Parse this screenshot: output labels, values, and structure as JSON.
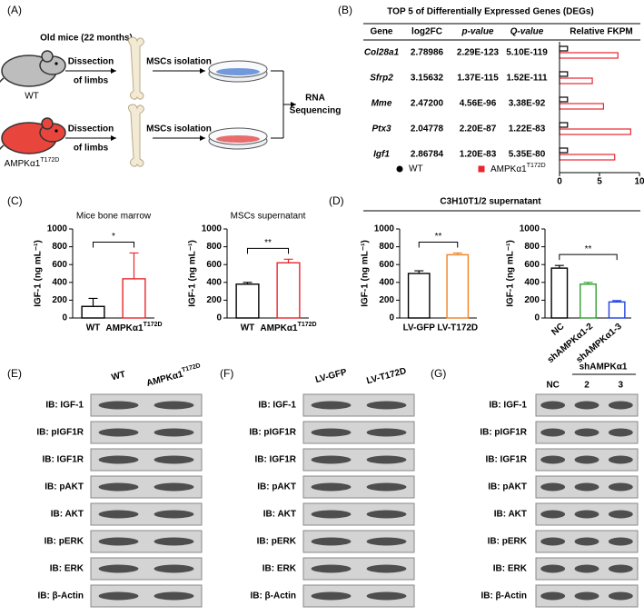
{
  "panel_a": {
    "label": "(A)",
    "title": "Old mice (22 months)",
    "groups": [
      {
        "name": "WT",
        "step1": [
          "Dissection",
          "of limbs"
        ],
        "step2": "MSCs isolation"
      },
      {
        "name": {
          "text": "AMPKα1",
          "sup": "T172D"
        },
        "step1": [
          "Dissection",
          "of limbs"
        ],
        "step2": "MSCs isolation"
      }
    ],
    "result": [
      "RNA",
      "Sequencing"
    ]
  },
  "panel_b": {
    "label": "(B)",
    "title": "TOP 5 of Differentially Expressed Genes (DEGs)",
    "header": [
      "Gene",
      "log2FC",
      "p-value",
      "Q-value",
      "Relative FKPM"
    ],
    "rows": [
      [
        "Col28a1",
        "2.78986",
        "2.29E-123",
        "5.10E-119"
      ],
      [
        "Sfrp2",
        "3.15632",
        "1.37E-115",
        "1.52E-111"
      ],
      [
        "Mme",
        "2.47200",
        "4.56E-96",
        "3.38E-92"
      ],
      [
        "Ptx3",
        "2.04778",
        "2.20E-87",
        "1.22E-83"
      ],
      [
        "Igf1",
        "2.86784",
        "1.20E-83",
        "5.35E-80"
      ]
    ],
    "highlight_row": 4,
    "highlight_color": "#e8262d",
    "chart": {
      "type": "bar",
      "orientation": "horizontal",
      "xlim": [
        0,
        10
      ],
      "xticks": [
        0,
        5,
        10
      ],
      "series": [
        {
          "name": "WT",
          "color": "#000000",
          "values": [
            1,
            1,
            1,
            1,
            1
          ]
        },
        {
          "name": {
            "text": "AMPKα1",
            "sup": "T172D"
          },
          "color": "#e8262d",
          "values": [
            7.3,
            4.1,
            5.5,
            8.9,
            6.9
          ]
        }
      ]
    }
  },
  "panel_c": {
    "label": "(C)",
    "charts": [
      {
        "type": "bar",
        "title": "Mice bone marrow",
        "ylabel": "IGF-1 (ng mL⁻¹)",
        "categories": [
          "WT",
          {
            "text": "AMPKα1",
            "sup": "T172D"
          }
        ],
        "values": [
          130,
          440
        ],
        "errors": [
          90,
          290
        ],
        "colors": [
          "#000000",
          "#e8262d"
        ],
        "ylim": [
          0,
          1000
        ],
        "yticks": [
          0,
          200,
          400,
          600,
          800,
          1000
        ],
        "significance": "*"
      },
      {
        "type": "bar",
        "title": "MSCs supernatant",
        "ylabel": "IGF-1 (ng mL⁻¹)",
        "categories": [
          "WT",
          {
            "text": "AMPKα1",
            "sup": "T172D"
          }
        ],
        "values": [
          380,
          620
        ],
        "errors": [
          20,
          40
        ],
        "colors": [
          "#000000",
          "#e8262d"
        ],
        "ylim": [
          0,
          1000
        ],
        "yticks": [
          0,
          200,
          400,
          600,
          800,
          1000
        ],
        "significance": "**"
      }
    ]
  },
  "panel_d": {
    "label": "(D)",
    "title": "C3H10T1/2 supernatant",
    "charts": [
      {
        "type": "bar",
        "ylabel": "IGF-1 (ng mL⁻¹)",
        "categories": [
          "LV-GFP",
          "LV-T172D"
        ],
        "values": [
          500,
          710
        ],
        "errors": [
          30,
          20
        ],
        "colors": [
          "#000000",
          "#f08020"
        ],
        "ylim": [
          0,
          1000
        ],
        "yticks": [
          0,
          200,
          400,
          600,
          800,
          1000
        ],
        "significance": "**"
      },
      {
        "type": "bar",
        "ylabel": "IGF-1 (ng mL⁻¹)",
        "categories": [
          "NC",
          "shAMPKα1-2",
          "shAMPKα1-3"
        ],
        "values": [
          560,
          380,
          180
        ],
        "errors": [
          30,
          20,
          15
        ],
        "colors": [
          "#000000",
          "#2ca02c",
          "#1f3fe0"
        ],
        "ylim": [
          0,
          1000
        ],
        "yticks": [
          0,
          200,
          400,
          600,
          800,
          1000
        ],
        "significance": "**"
      }
    ]
  },
  "panel_e": {
    "label": "(E)",
    "columns": [
      "WT",
      {
        "text": "AMPKα1",
        "sup": "T172D"
      }
    ],
    "rows": [
      "IB: IGF-1",
      "IB: pIGF1R",
      "IB: IGF1R",
      "IB: pAKT",
      "IB: AKT",
      "IB: pERK",
      "IB: ERK",
      "IB: β-Actin"
    ]
  },
  "panel_f": {
    "label": "(F)",
    "columns": [
      "LV-GFP",
      "LV-T172D"
    ],
    "rows": [
      "IB: IGF-1",
      "IB: pIGF1R",
      "IB: IGF1R",
      "IB: pAKT",
      "IB: AKT",
      "IB: pERK",
      "IB: ERK",
      "IB: β-Actin"
    ]
  },
  "panel_g": {
    "label": "(G)",
    "group": "shAMPKα1",
    "columns": [
      "NC",
      "2",
      "3"
    ],
    "rows": [
      "IB: IGF-1",
      "IB: pIGF1R",
      "IB: IGF1R",
      "IB: pAKT",
      "IB: AKT",
      "IB: pERK",
      "IB: ERK",
      "IB: β-Actin"
    ]
  }
}
